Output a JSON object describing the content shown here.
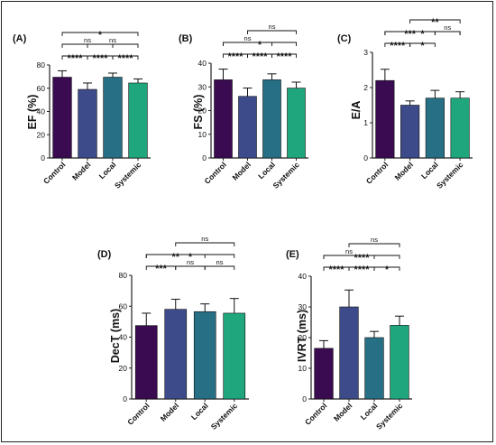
{
  "chart_data": [
    {
      "type": "bar",
      "panel": "(A)",
      "ylabel": "EF (%)",
      "categories": [
        "Control",
        "Model",
        "Local",
        "Systemic"
      ],
      "values": [
        69.5,
        59,
        69.5,
        64.5
      ],
      "errors": [
        5.5,
        5.5,
        3.5,
        3.5
      ],
      "ylim": [
        0,
        80
      ],
      "yticks": [
        "0",
        "20",
        "40",
        "60",
        "80"
      ],
      "comparisons": [
        {
          "from": "Control",
          "to": "Systemic",
          "label": "*"
        },
        {
          "from": "Model",
          "to": "Systemic",
          "label": "ns"
        },
        {
          "from": "Control",
          "to": "Local",
          "label": "ns"
        },
        {
          "from": "Control",
          "to": "Model",
          "label": "****"
        },
        {
          "from": "Model",
          "to": "Local",
          "label": "****"
        },
        {
          "from": "Local",
          "to": "Systemic",
          "label": "****"
        }
      ]
    },
    {
      "type": "bar",
      "panel": "(B)",
      "ylabel": "FS (%)",
      "categories": [
        "Control",
        "Model",
        "Local",
        "Systemic"
      ],
      "values": [
        33,
        26,
        33,
        29.5
      ],
      "errors": [
        4.5,
        3.5,
        2.5,
        2.5
      ],
      "ylim": [
        0,
        40
      ],
      "yticks": [
        "0",
        "10",
        "20",
        "30",
        "40"
      ],
      "comparisons": [
        {
          "from": "Model",
          "to": "Systemic",
          "label": "ns"
        },
        {
          "from": "Control",
          "to": "Systemic",
          "label": "*"
        },
        {
          "from": "Control",
          "to": "Local",
          "label": "ns"
        },
        {
          "from": "Control",
          "to": "Model",
          "label": "****"
        },
        {
          "from": "Model",
          "to": "Local",
          "label": "****"
        },
        {
          "from": "Local",
          "to": "Systemic",
          "label": "****"
        }
      ]
    },
    {
      "type": "bar",
      "panel": "(C)",
      "ylabel": "E/A",
      "categories": [
        "Control",
        "Model",
        "Local",
        "Systemic"
      ],
      "values": [
        2.2,
        1.5,
        1.7,
        1.7
      ],
      "errors": [
        0.32,
        0.12,
        0.22,
        0.18
      ],
      "ylim": [
        0,
        3
      ],
      "yticks": [
        "0",
        "1",
        "2",
        "3"
      ],
      "comparisons": [
        {
          "from": "Model",
          "to": "Systemic",
          "label": "**"
        },
        {
          "from": "Control",
          "to": "Systemic",
          "label": "*"
        },
        {
          "from": "Control",
          "to": "Local",
          "label": "***"
        },
        {
          "from": "Local",
          "to": "Systemic",
          "label": "ns"
        },
        {
          "from": "Control",
          "to": "Model",
          "label": "****"
        },
        {
          "from": "Model",
          "to": "Local",
          "label": "*"
        }
      ]
    },
    {
      "type": "bar",
      "panel": "(D)",
      "ylabel": "DecT (ms)",
      "categories": [
        "Control",
        "Model",
        "Local",
        "Systemic"
      ],
      "values": [
        47.5,
        58,
        56.5,
        55.5
      ],
      "errors": [
        8,
        6.5,
        5,
        9.5
      ],
      "ylim": [
        0,
        80
      ],
      "yticks": [
        "0",
        "20",
        "40",
        "60",
        "80"
      ],
      "comparisons": [
        {
          "from": "Model",
          "to": "Systemic",
          "label": "ns"
        },
        {
          "from": "Control",
          "to": "Systemic",
          "label": "*"
        },
        {
          "from": "Control",
          "to": "Local",
          "label": "**"
        },
        {
          "from": "Control",
          "to": "Model",
          "label": "***"
        },
        {
          "from": "Model",
          "to": "Local",
          "label": "ns"
        },
        {
          "from": "Local",
          "to": "Systemic",
          "label": "ns"
        }
      ]
    },
    {
      "type": "bar",
      "panel": "(E)",
      "ylabel": "IVRT (ms)",
      "categories": [
        "Control",
        "Model",
        "Local",
        "Systemic"
      ],
      "values": [
        16.5,
        30,
        20,
        24
      ],
      "errors": [
        2.5,
        5.5,
        2,
        3
      ],
      "ylim": [
        0,
        40
      ],
      "yticks": [
        "0",
        "10",
        "20",
        "30",
        "40"
      ],
      "comparisons": [
        {
          "from": "Model",
          "to": "Systemic",
          "label": "ns"
        },
        {
          "from": "Control",
          "to": "Systemic",
          "label": "****"
        },
        {
          "from": "Control",
          "to": "Local",
          "label": "ns"
        },
        {
          "from": "Control",
          "to": "Model",
          "label": "****"
        },
        {
          "from": "Model",
          "to": "Local",
          "label": "****"
        },
        {
          "from": "Local",
          "to": "Systemic",
          "label": "*"
        }
      ]
    }
  ],
  "colors": {
    "Control": "#3b0b52",
    "Model": "#3d4b8a",
    "Local": "#266f85",
    "Systemic": "#1fa67c",
    "axis": "#222222"
  }
}
